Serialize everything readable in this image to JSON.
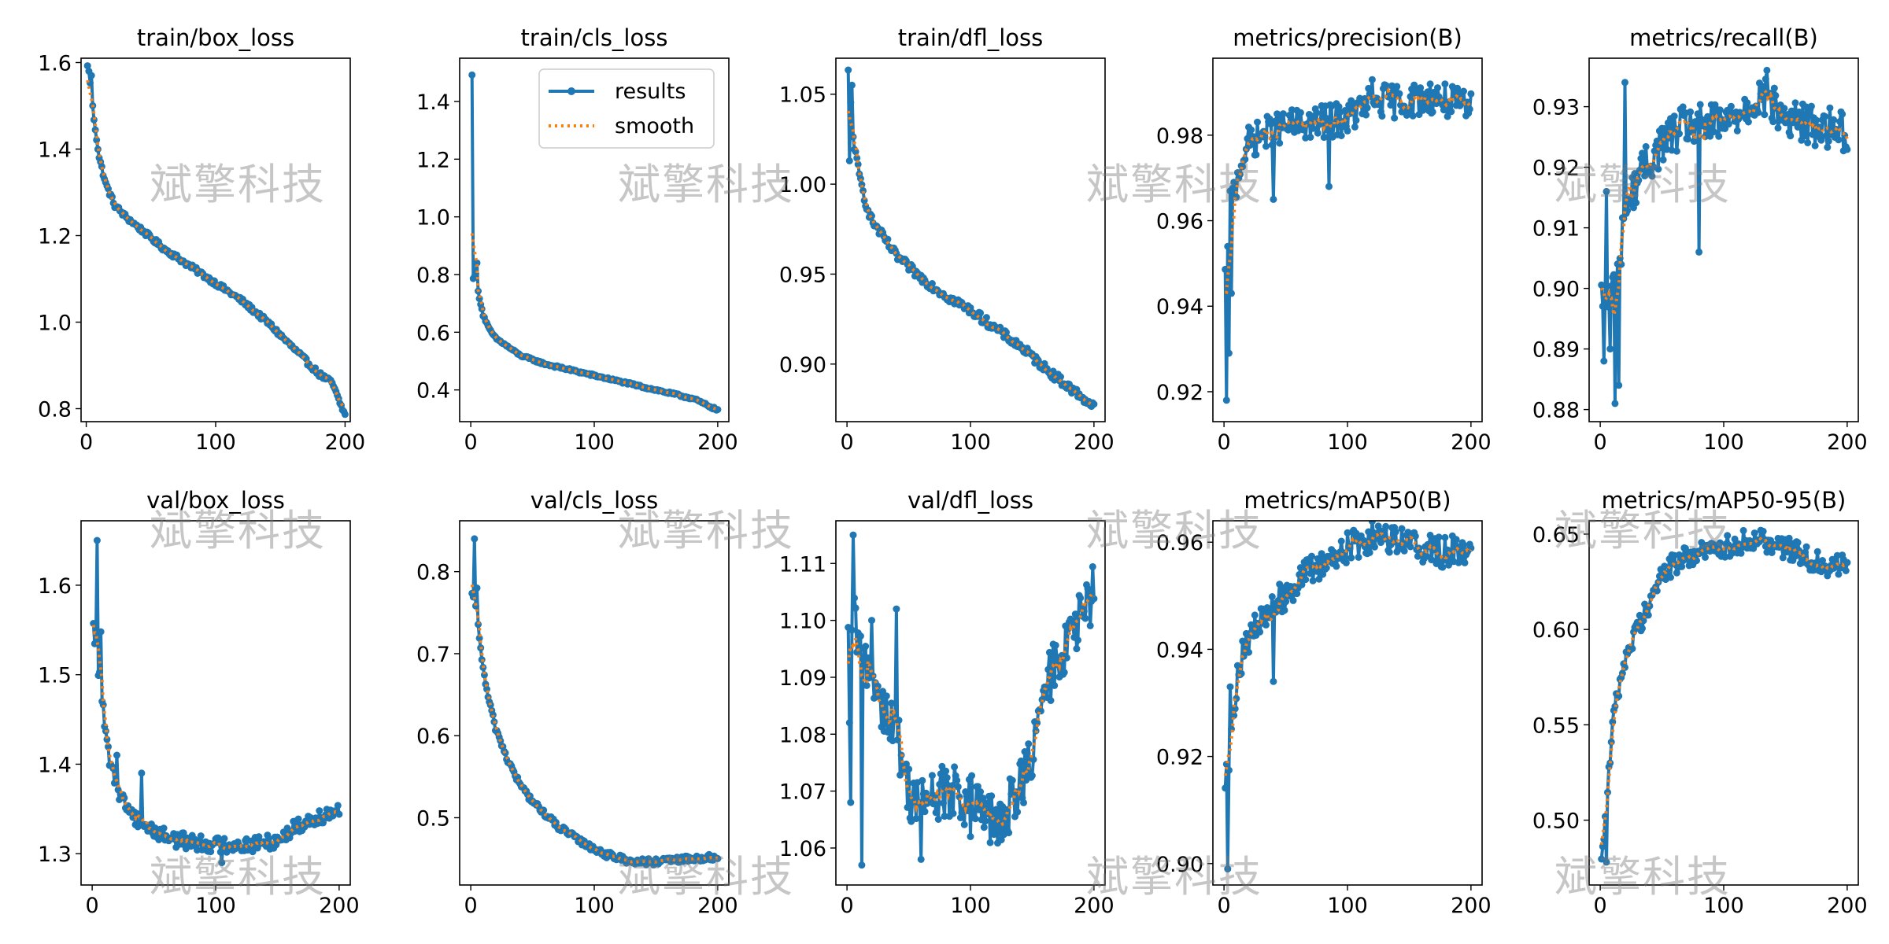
{
  "figure": {
    "watermark_text": "斌擎科技"
  },
  "legend": {
    "results": "results",
    "smooth": "smooth"
  },
  "colors": {
    "results": "#1f77b4",
    "smooth": "#ff7f0e"
  },
  "chart_data": [
    {
      "type": "line",
      "title": "train/box_loss",
      "xlim": [
        -4,
        204
      ],
      "ylim": [
        0.77,
        1.61
      ],
      "xticks": [
        0,
        100,
        200
      ],
      "xtick_labels": [
        "0",
        "100",
        "200"
      ],
      "yticks": [
        0.8,
        1.0,
        1.2,
        1.4,
        1.6
      ],
      "ytick_labels": [
        "0.8",
        "1.0",
        "1.2",
        "1.4",
        "1.6"
      ],
      "keypoints": [
        [
          1,
          1.59
        ],
        [
          3,
          1.55
        ],
        [
          6,
          1.47
        ],
        [
          10,
          1.38
        ],
        [
          15,
          1.32
        ],
        [
          22,
          1.27
        ],
        [
          30,
          1.245
        ],
        [
          40,
          1.22
        ],
        [
          60,
          1.17
        ],
        [
          80,
          1.13
        ],
        [
          100,
          1.09
        ],
        [
          120,
          1.05
        ],
        [
          140,
          1.0
        ],
        [
          160,
          0.94
        ],
        [
          180,
          0.88
        ],
        [
          190,
          0.86
        ],
        [
          195,
          0.82
        ],
        [
          200,
          0.785
        ]
      ],
      "noise": 0.006,
      "spikes": [
        [
          2,
          1.58
        ],
        [
          4,
          1.57
        ]
      ],
      "legend": false
    },
    {
      "type": "line",
      "title": "train/cls_loss",
      "xlim": [
        -9,
        209
      ],
      "ylim": [
        0.29,
        1.55
      ],
      "xticks": [
        0,
        100,
        200
      ],
      "xtick_labels": [
        "0",
        "100",
        "200"
      ],
      "yticks": [
        0.4,
        0.6,
        0.8,
        1.0,
        1.2,
        1.4
      ],
      "ytick_labels": [
        "0.4",
        "0.6",
        "0.8",
        "1.0",
        "1.2",
        "1.4"
      ],
      "keypoints": [
        [
          1,
          1.49
        ],
        [
          2,
          0.79
        ],
        [
          4,
          0.8
        ],
        [
          6,
          0.74
        ],
        [
          10,
          0.66
        ],
        [
          15,
          0.61
        ],
        [
          20,
          0.58
        ],
        [
          30,
          0.55
        ],
        [
          40,
          0.52
        ],
        [
          60,
          0.49
        ],
        [
          80,
          0.47
        ],
        [
          100,
          0.45
        ],
        [
          120,
          0.43
        ],
        [
          140,
          0.41
        ],
        [
          160,
          0.39
        ],
        [
          180,
          0.37
        ],
        [
          190,
          0.35
        ],
        [
          200,
          0.33
        ]
      ],
      "noise": 0.004,
      "spikes": [
        [
          5,
          0.84
        ]
      ],
      "legend": true
    },
    {
      "type": "line",
      "title": "train/dfl_loss",
      "xlim": [
        -9,
        209
      ],
      "ylim": [
        0.868,
        1.07
      ],
      "xticks": [
        0,
        100,
        200
      ],
      "xtick_labels": [
        "0",
        "100",
        "200"
      ],
      "yticks": [
        0.9,
        0.95,
        1.0,
        1.05
      ],
      "ytick_labels": [
        "0.90",
        "0.95",
        "1.00",
        "1.05"
      ],
      "keypoints": [
        [
          1,
          1.062
        ],
        [
          3,
          1.045
        ],
        [
          6,
          1.02
        ],
        [
          10,
          1.005
        ],
        [
          15,
          0.99
        ],
        [
          20,
          0.98
        ],
        [
          30,
          0.97
        ],
        [
          40,
          0.96
        ],
        [
          60,
          0.948
        ],
        [
          80,
          0.938
        ],
        [
          100,
          0.93
        ],
        [
          120,
          0.92
        ],
        [
          140,
          0.91
        ],
        [
          160,
          0.898
        ],
        [
          180,
          0.887
        ],
        [
          190,
          0.882
        ],
        [
          200,
          0.876
        ]
      ],
      "noise": 0.0025,
      "spikes": [
        [
          2,
          1.013
        ],
        [
          4,
          1.055
        ]
      ],
      "legend": false
    },
    {
      "type": "line",
      "title": "metrics/precision(B)",
      "xlim": [
        -9,
        209
      ],
      "ylim": [
        0.913,
        0.998
      ],
      "xticks": [
        0,
        100,
        200
      ],
      "xtick_labels": [
        "0",
        "100",
        "200"
      ],
      "yticks": [
        0.92,
        0.94,
        0.96,
        0.98
      ],
      "ytick_labels": [
        "0.92",
        "0.94",
        "0.96",
        "0.98"
      ],
      "keypoints": [
        [
          1,
          0.946
        ],
        [
          3,
          0.95
        ],
        [
          5,
          0.965
        ],
        [
          10,
          0.968
        ],
        [
          15,
          0.975
        ],
        [
          20,
          0.978
        ],
        [
          30,
          0.98
        ],
        [
          50,
          0.982
        ],
        [
          80,
          0.983
        ],
        [
          100,
          0.984
        ],
        [
          120,
          0.988
        ],
        [
          150,
          0.988
        ],
        [
          170,
          0.989
        ],
        [
          200,
          0.986
        ]
      ],
      "noise": 0.004,
      "spikes": [
        [
          2,
          0.918
        ],
        [
          4,
          0.929
        ],
        [
          6,
          0.943
        ],
        [
          12,
          0.97
        ],
        [
          40,
          0.965
        ],
        [
          85,
          0.968
        ],
        [
          120,
          0.993
        ]
      ],
      "legend": false
    },
    {
      "type": "line",
      "title": "metrics/recall(B)",
      "xlim": [
        -9,
        209
      ],
      "ylim": [
        0.878,
        0.938
      ],
      "xticks": [
        0,
        100,
        200
      ],
      "xtick_labels": [
        "0",
        "100",
        "200"
      ],
      "yticks": [
        0.88,
        0.89,
        0.9,
        0.91,
        0.92,
        0.93
      ],
      "ytick_labels": [
        "0.88",
        "0.89",
        "0.90",
        "0.91",
        "0.92",
        "0.93"
      ],
      "keypoints": [
        [
          1,
          0.898
        ],
        [
          5,
          0.897
        ],
        [
          10,
          0.9
        ],
        [
          15,
          0.903
        ],
        [
          20,
          0.912
        ],
        [
          30,
          0.918
        ],
        [
          50,
          0.924
        ],
        [
          70,
          0.927
        ],
        [
          100,
          0.927
        ],
        [
          130,
          0.932
        ],
        [
          150,
          0.928
        ],
        [
          170,
          0.927
        ],
        [
          200,
          0.926
        ]
      ],
      "noise": 0.0035,
      "spikes": [
        [
          3,
          0.888
        ],
        [
          5,
          0.916
        ],
        [
          8,
          0.89
        ],
        [
          12,
          0.881
        ],
        [
          15,
          0.884
        ],
        [
          20,
          0.934
        ],
        [
          80,
          0.906
        ],
        [
          135,
          0.936
        ]
      ],
      "legend": false
    },
    {
      "type": "line",
      "title": "val/box_loss",
      "xlim": [
        -9,
        209
      ],
      "ylim": [
        1.265,
        1.672
      ],
      "xticks": [
        0,
        100,
        200
      ],
      "xtick_labels": [
        "0",
        "100",
        "200"
      ],
      "yticks": [
        1.3,
        1.4,
        1.5,
        1.6
      ],
      "ytick_labels": [
        "1.3",
        "1.4",
        "1.5",
        "1.6"
      ],
      "keypoints": [
        [
          1,
          1.55
        ],
        [
          4,
          1.52
        ],
        [
          8,
          1.47
        ],
        [
          12,
          1.42
        ],
        [
          18,
          1.38
        ],
        [
          25,
          1.36
        ],
        [
          35,
          1.34
        ],
        [
          50,
          1.325
        ],
        [
          70,
          1.315
        ],
        [
          100,
          1.31
        ],
        [
          130,
          1.31
        ],
        [
          150,
          1.315
        ],
        [
          165,
          1.33
        ],
        [
          180,
          1.34
        ],
        [
          200,
          1.35
        ]
      ],
      "noise": 0.009,
      "spikes": [
        [
          4,
          1.65
        ],
        [
          7,
          1.548
        ],
        [
          20,
          1.41
        ],
        [
          40,
          1.39
        ],
        [
          105,
          1.29
        ]
      ],
      "legend": false
    },
    {
      "type": "line",
      "title": "val/cls_loss",
      "xlim": [
        -9,
        209
      ],
      "ylim": [
        0.418,
        0.862
      ],
      "xticks": [
        0,
        100,
        200
      ],
      "xtick_labels": [
        "0",
        "100",
        "200"
      ],
      "yticks": [
        0.5,
        0.6,
        0.7,
        0.8
      ],
      "ytick_labels": [
        "0.5",
        "0.6",
        "0.7",
        "0.8"
      ],
      "keypoints": [
        [
          1,
          0.77
        ],
        [
          5,
          0.75
        ],
        [
          10,
          0.68
        ],
        [
          15,
          0.64
        ],
        [
          20,
          0.61
        ],
        [
          30,
          0.57
        ],
        [
          40,
          0.54
        ],
        [
          50,
          0.52
        ],
        [
          70,
          0.49
        ],
        [
          90,
          0.47
        ],
        [
          110,
          0.455
        ],
        [
          130,
          0.447
        ],
        [
          150,
          0.446
        ],
        [
          170,
          0.449
        ],
        [
          200,
          0.452
        ]
      ],
      "noise": 0.004,
      "spikes": [
        [
          3,
          0.84
        ],
        [
          5,
          0.78
        ]
      ],
      "legend": false
    },
    {
      "type": "line",
      "title": "val/dfl_loss",
      "xlim": [
        -9,
        209
      ],
      "ylim": [
        1.0535,
        1.1175
      ],
      "xticks": [
        0,
        100,
        200
      ],
      "xtick_labels": [
        "0",
        "100",
        "200"
      ],
      "yticks": [
        1.06,
        1.07,
        1.08,
        1.09,
        1.1,
        1.11
      ],
      "ytick_labels": [
        "1.06",
        "1.07",
        "1.08",
        "1.09",
        "1.10",
        "1.11"
      ],
      "keypoints": [
        [
          1,
          1.094
        ],
        [
          5,
          1.1
        ],
        [
          10,
          1.095
        ],
        [
          20,
          1.09
        ],
        [
          30,
          1.085
        ],
        [
          40,
          1.08
        ],
        [
          50,
          1.07
        ],
        [
          60,
          1.068
        ],
        [
          80,
          1.07
        ],
        [
          100,
          1.068
        ],
        [
          115,
          1.065
        ],
        [
          125,
          1.063
        ],
        [
          135,
          1.07
        ],
        [
          150,
          1.075
        ],
        [
          160,
          1.088
        ],
        [
          170,
          1.093
        ],
        [
          180,
          1.096
        ],
        [
          200,
          1.105
        ]
      ],
      "noise": 0.005,
      "spikes": [
        [
          2,
          1.082
        ],
        [
          3,
          1.068
        ],
        [
          5,
          1.115
        ],
        [
          12,
          1.057
        ],
        [
          20,
          1.1
        ],
        [
          40,
          1.102
        ],
        [
          60,
          1.058
        ],
        [
          100,
          1.062
        ]
      ],
      "legend": false
    },
    {
      "type": "line",
      "title": "metrics/mAP50(B)",
      "xlim": [
        -9,
        209
      ],
      "ylim": [
        0.896,
        0.964
      ],
      "xticks": [
        0,
        100,
        200
      ],
      "xtick_labels": [
        "0",
        "100",
        "200"
      ],
      "yticks": [
        0.9,
        0.92,
        0.94,
        0.96
      ],
      "ytick_labels": [
        "0.90",
        "0.92",
        "0.94",
        "0.96"
      ],
      "keypoints": [
        [
          1,
          0.917
        ],
        [
          4,
          0.92
        ],
        [
          8,
          0.93
        ],
        [
          12,
          0.937
        ],
        [
          20,
          0.942
        ],
        [
          30,
          0.945
        ],
        [
          40,
          0.948
        ],
        [
          60,
          0.953
        ],
        [
          80,
          0.956
        ],
        [
          100,
          0.959
        ],
        [
          120,
          0.961
        ],
        [
          140,
          0.961
        ],
        [
          160,
          0.959
        ],
        [
          180,
          0.958
        ],
        [
          200,
          0.959
        ]
      ],
      "noise": 0.003,
      "spikes": [
        [
          3,
          0.899
        ],
        [
          5,
          0.933
        ],
        [
          40,
          0.934
        ],
        [
          125,
          0.963
        ]
      ],
      "legend": false
    },
    {
      "type": "line",
      "title": "metrics/mAP50-95(B)",
      "xlim": [
        -9,
        209
      ],
      "ylim": [
        0.466,
        0.657
      ],
      "xticks": [
        0,
        100,
        200
      ],
      "xtick_labels": [
        "0",
        "100",
        "200"
      ],
      "yticks": [
        0.5,
        0.55,
        0.6,
        0.65
      ],
      "ytick_labels": [
        "0.50",
        "0.55",
        "0.60",
        "0.65"
      ],
      "keypoints": [
        [
          1,
          0.485
        ],
        [
          3,
          0.49
        ],
        [
          6,
          0.52
        ],
        [
          10,
          0.55
        ],
        [
          15,
          0.57
        ],
        [
          20,
          0.585
        ],
        [
          30,
          0.6
        ],
        [
          40,
          0.615
        ],
        [
          50,
          0.628
        ],
        [
          60,
          0.635
        ],
        [
          80,
          0.64
        ],
        [
          100,
          0.643
        ],
        [
          120,
          0.647
        ],
        [
          140,
          0.646
        ],
        [
          160,
          0.64
        ],
        [
          180,
          0.634
        ],
        [
          200,
          0.634
        ]
      ],
      "noise": 0.006,
      "spikes": [
        [
          5,
          0.478
        ],
        [
          8,
          0.53
        ],
        [
          130,
          0.652
        ]
      ],
      "legend": false
    }
  ]
}
